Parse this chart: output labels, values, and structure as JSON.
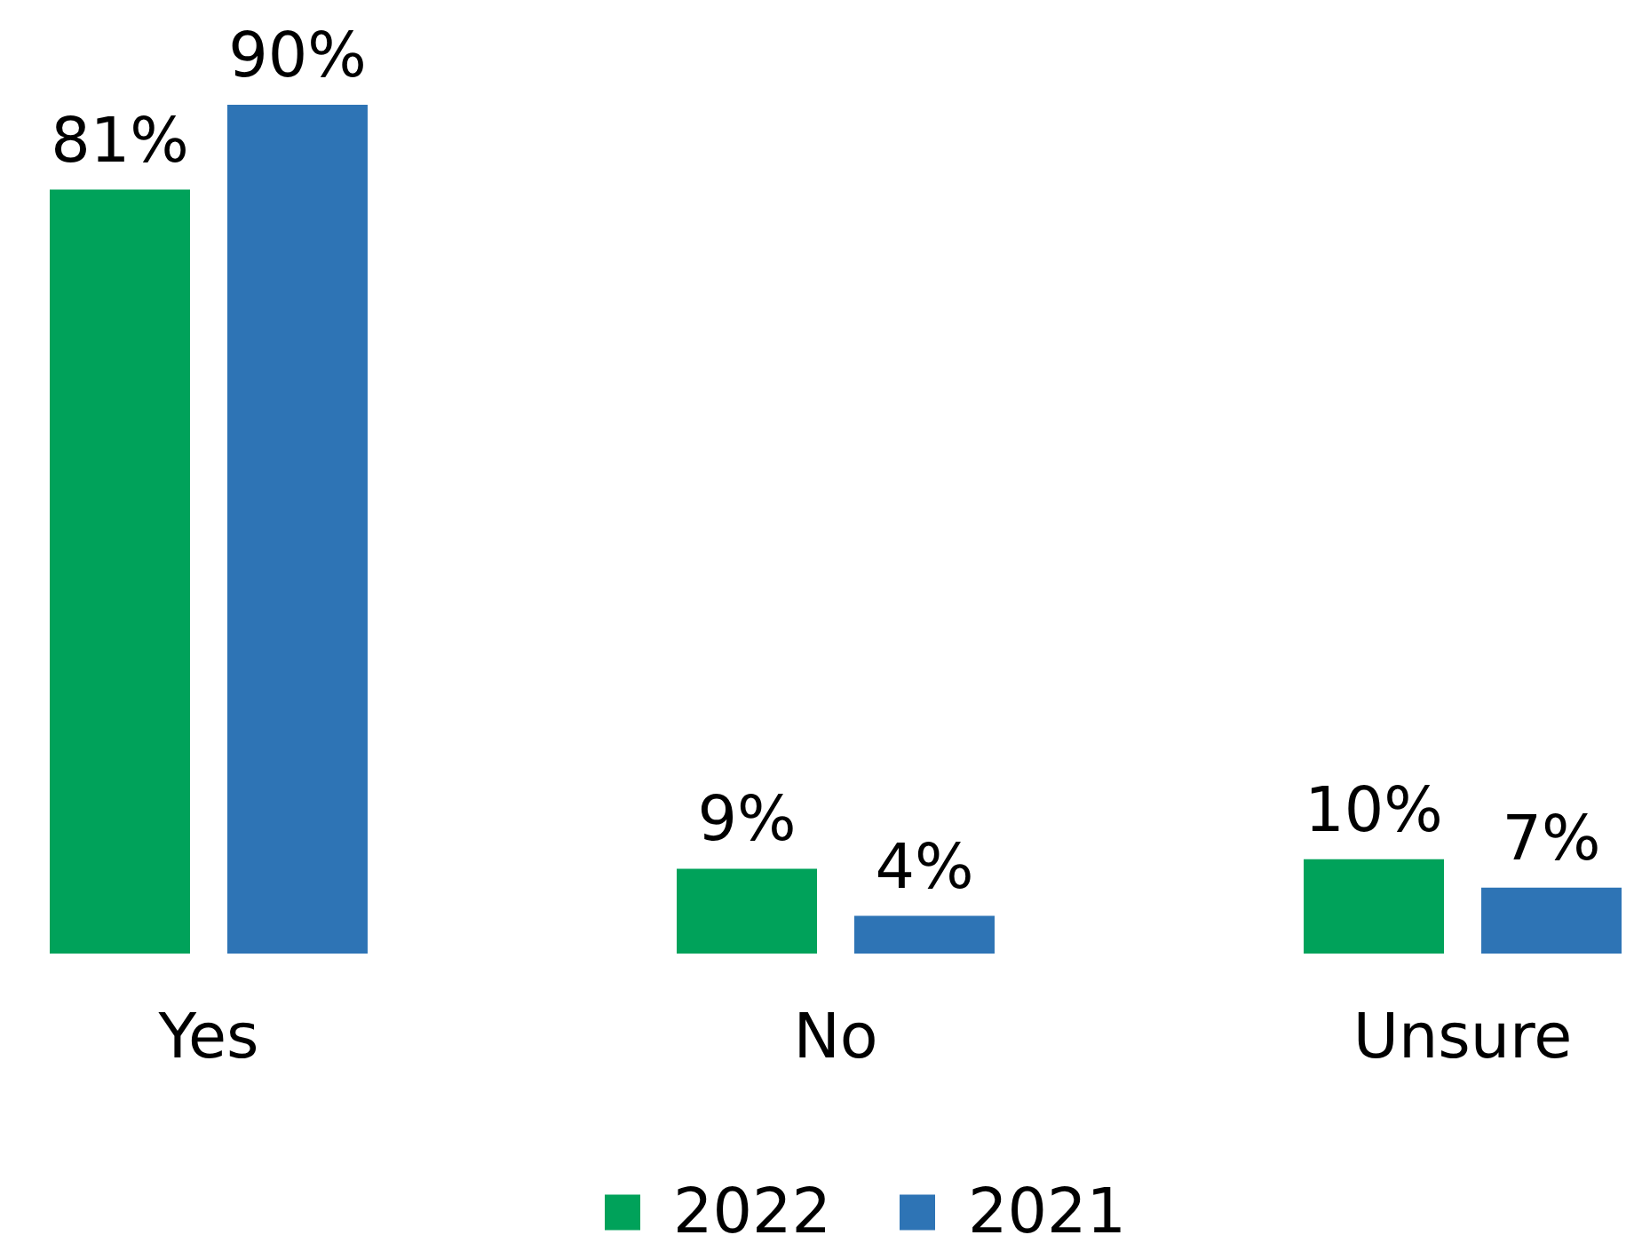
{
  "chart_data": {
    "type": "bar",
    "categories": [
      "Yes",
      "No",
      "Unsure"
    ],
    "series": [
      {
        "name": "2022",
        "color": "#00a25a",
        "values": [
          81,
          9,
          10
        ],
        "value_labels": [
          "81%",
          "9%",
          "10%"
        ]
      },
      {
        "name": "2021",
        "color": "#2e74b5",
        "values": [
          90,
          4,
          7
        ],
        "value_labels": [
          "90%",
          "4%",
          "7%"
        ]
      }
    ],
    "legend": "bottom",
    "tick_labels": "x",
    "grid": false
  }
}
